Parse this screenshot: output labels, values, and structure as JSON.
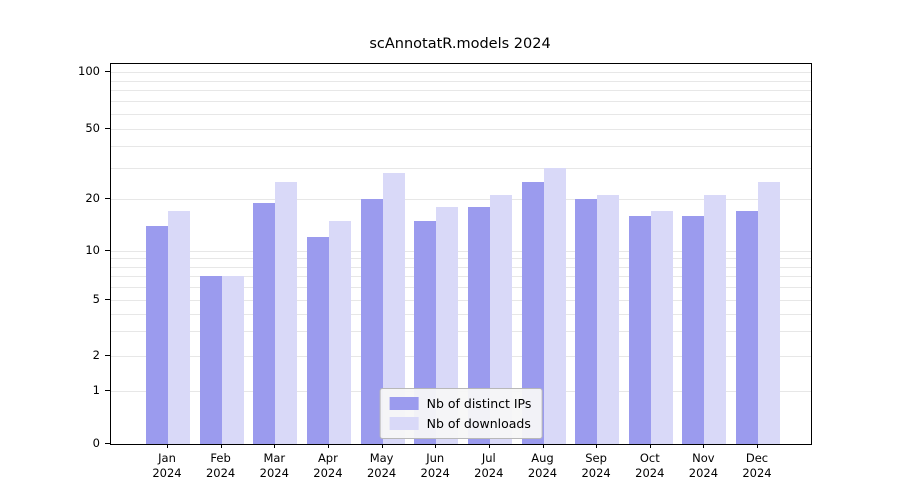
{
  "chart_data": {
    "type": "bar",
    "title": "scAnnotatR.models 2024",
    "xlabel": "",
    "ylabel": "",
    "scale": "log-like",
    "ylim": [
      0,
      100
    ],
    "grid": true,
    "grid_color": "#e7e7e7",
    "legend_position": "bottom-center",
    "categories": [
      "Jan\n2024",
      "Feb\n2024",
      "Mar\n2024",
      "Apr\n2024",
      "May\n2024",
      "Jun\n2024",
      "Jul\n2024",
      "Aug\n2024",
      "Sep\n2024",
      "Oct\n2024",
      "Nov\n2024",
      "Dec\n2024"
    ],
    "series": [
      {
        "name": "Nb of distinct IPs",
        "color": "#9b9bee",
        "values": [
          14,
          7,
          19,
          12,
          20,
          15,
          18,
          25,
          20,
          16,
          16,
          17
        ]
      },
      {
        "name": "Nb of downloads",
        "color": "#d9d9f8",
        "values": [
          17,
          7,
          25,
          15,
          28,
          18,
          21,
          30,
          21,
          17,
          21,
          25
        ]
      }
    ],
    "y_ticks": [
      0,
      1,
      2,
      5,
      10,
      20,
      50,
      100
    ],
    "y_minor_gridlines": [
      1,
      2,
      3,
      4,
      5,
      6,
      7,
      8,
      9,
      10,
      20,
      30,
      40,
      50,
      60,
      70,
      80,
      90,
      100
    ]
  },
  "legend": {
    "items": [
      {
        "label": "Nb of distinct IPs"
      },
      {
        "label": "Nb of downloads"
      }
    ]
  }
}
